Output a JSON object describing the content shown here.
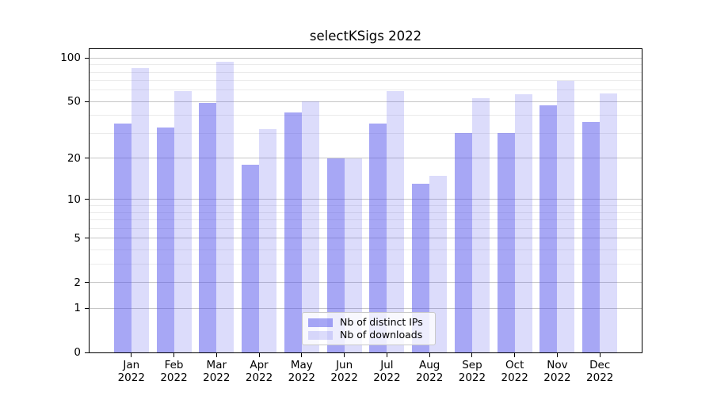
{
  "chart_data": {
    "type": "bar",
    "title": "selectKSigs 2022",
    "categories": [
      "Jan",
      "Feb",
      "Mar",
      "Apr",
      "May",
      "Jun",
      "Jul",
      "Aug",
      "Sep",
      "Oct",
      "Nov",
      "Dec"
    ],
    "year": "2022",
    "series": [
      {
        "name": "Nb of distinct IPs",
        "color": "rgba(80,80,235,0.5)",
        "values": [
          35,
          33,
          49,
          18,
          42,
          20,
          35,
          13,
          30,
          30,
          47,
          36
        ]
      },
      {
        "name": "Nb of downloads",
        "color": "rgba(80,80,235,0.2)",
        "values": [
          85,
          59,
          94,
          32,
          50,
          20,
          59,
          15,
          53,
          56,
          70,
          57
        ]
      }
    ],
    "yscale": "log1p",
    "y_ticks": [
      0,
      1,
      2,
      5,
      10,
      20,
      50,
      100
    ],
    "y_minor_ticks": [
      3,
      4,
      6,
      7,
      8,
      9,
      30,
      40,
      60,
      70,
      80,
      90
    ],
    "ylim": [
      0,
      117
    ],
    "xlabel": "",
    "ylabel": "",
    "grid": true,
    "legend_position": "lower center"
  },
  "colors": {
    "bar_base": "#5050eb",
    "major_grid": "#c6c6c6",
    "minor_grid": "#ebebeb",
    "spine": "#000000",
    "background": "#ffffff"
  }
}
